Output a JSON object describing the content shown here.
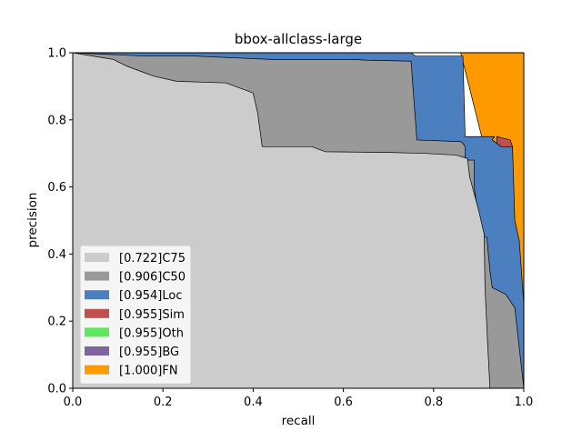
{
  "chart_data": {
    "type": "area",
    "title": "bbox-allclass-large",
    "xlabel": "recall",
    "ylabel": "precision",
    "xlim": [
      0.0,
      1.0
    ],
    "ylim": [
      0.0,
      1.0
    ],
    "xticks": [
      "0.0",
      "0.2",
      "0.4",
      "0.6",
      "0.8",
      "1.0"
    ],
    "yticks": [
      "0.0",
      "0.2",
      "0.4",
      "0.6",
      "0.8",
      "1.0"
    ],
    "grid": false,
    "legend_position": "lower-left",
    "series": [
      {
        "name": "[0.722]C75",
        "color": "#cccccc",
        "points": [
          [
            0,
            1.0
          ],
          [
            0.09,
            0.98
          ],
          [
            0.12,
            0.96
          ],
          [
            0.16,
            0.94
          ],
          [
            0.18,
            0.93
          ],
          [
            0.23,
            0.915
          ],
          [
            0.34,
            0.91
          ],
          [
            0.36,
            0.9
          ],
          [
            0.38,
            0.89
          ],
          [
            0.4,
            0.88
          ],
          [
            0.41,
            0.82
          ],
          [
            0.42,
            0.72
          ],
          [
            0.53,
            0.72
          ],
          [
            0.56,
            0.705
          ],
          [
            0.7,
            0.703
          ],
          [
            0.78,
            0.7
          ],
          [
            0.85,
            0.695
          ],
          [
            0.875,
            0.685
          ],
          [
            0.88,
            0.63
          ],
          [
            0.9,
            0.53
          ],
          [
            0.912,
            0.46
          ],
          [
            0.914,
            0.3
          ],
          [
            0.92,
            0.13
          ],
          [
            0.925,
            0.0
          ]
        ]
      },
      {
        "name": "[0.906]C50",
        "color": "#999999",
        "points": [
          [
            0,
            1.0
          ],
          [
            0.16,
            0.99
          ],
          [
            0.27,
            0.99
          ],
          [
            0.44,
            0.98
          ],
          [
            0.62,
            0.98
          ],
          [
            0.65,
            0.978
          ],
          [
            0.75,
            0.975
          ],
          [
            0.763,
            0.74
          ],
          [
            0.86,
            0.735
          ],
          [
            0.865,
            0.73
          ],
          [
            0.87,
            0.72
          ],
          [
            0.87,
            0.68
          ],
          [
            0.89,
            0.68
          ],
          [
            0.89,
            0.6
          ],
          [
            0.9,
            0.5
          ],
          [
            0.91,
            0.45
          ],
          [
            0.918,
            0.45
          ],
          [
            0.925,
            0.35
          ],
          [
            0.93,
            0.3
          ],
          [
            0.945,
            0.29
          ],
          [
            0.96,
            0.28
          ],
          [
            0.97,
            0.26
          ],
          [
            0.98,
            0.24
          ],
          [
            1.0,
            0.0
          ]
        ]
      },
      {
        "name": "[0.954]Loc",
        "color": "#4c7fbf",
        "points": [
          [
            0,
            1.0
          ],
          [
            0.75,
            1.0
          ],
          [
            0.76,
            0.99
          ],
          [
            0.865,
            0.99
          ],
          [
            0.87,
            0.75
          ],
          [
            0.935,
            0.75
          ],
          [
            0.93,
            0.74
          ],
          [
            0.95,
            0.72
          ],
          [
            0.975,
            0.72
          ],
          [
            0.98,
            0.5
          ],
          [
            0.99,
            0.44
          ],
          [
            1.0,
            0.25
          ]
        ]
      },
      {
        "name": "[0.955]Sim",
        "color": "#c0504d",
        "points": [
          [
            0.94,
            0.75
          ],
          [
            0.97,
            0.74
          ],
          [
            0.975,
            0.72
          ]
        ]
      },
      {
        "name": "[0.955]Oth",
        "color": "#5ee65e",
        "points": []
      },
      {
        "name": "[0.955]BG",
        "color": "#8064a2",
        "points": []
      },
      {
        "name": "[1.000]FN",
        "color": "#ff9900",
        "points": [
          [
            0.86,
            1.0
          ],
          [
            1.0,
            1.0
          ],
          [
            1.0,
            0.25
          ]
        ]
      }
    ]
  }
}
